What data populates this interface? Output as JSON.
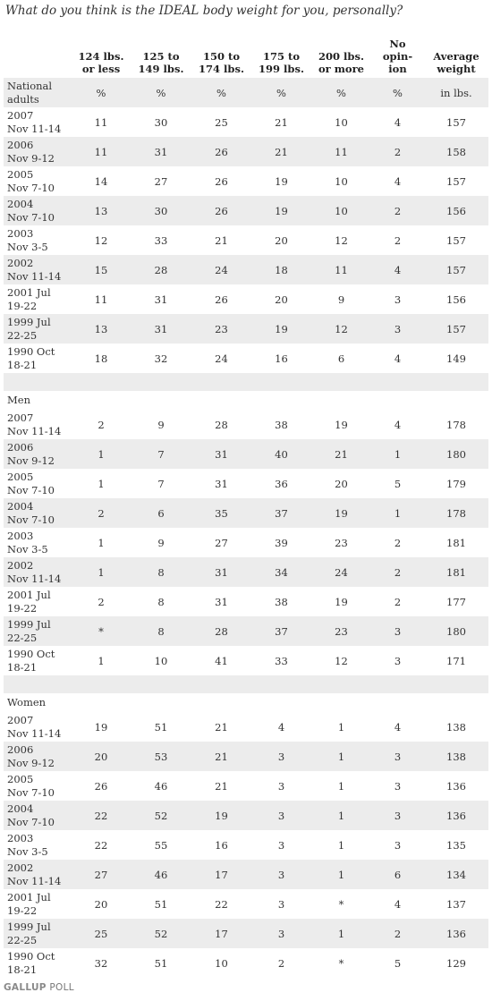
{
  "title": "What do you think is the IDEAL body weight for you, personally?",
  "columns": [
    [
      "124 lbs.",
      "or less"
    ],
    [
      "125 to",
      "149 lbs."
    ],
    [
      "150 to",
      "174 lbs."
    ],
    [
      "175 to",
      "199 lbs."
    ],
    [
      "200 lbs.",
      "or more"
    ],
    [
      "No",
      "opin-",
      "ion"
    ],
    [
      "Average",
      "weight"
    ]
  ],
  "units_label": [
    "National",
    "adults"
  ],
  "units": [
    "%",
    "%",
    "%",
    "%",
    "%",
    "%",
    "in lbs."
  ],
  "groups": [
    {
      "label": "",
      "rows": [
        {
          "date": [
            "2007",
            "Nov 11-14"
          ],
          "values": [
            "11",
            "30",
            "25",
            "21",
            "10",
            "4",
            "157"
          ]
        },
        {
          "date": [
            "2006",
            "Nov 9-12"
          ],
          "values": [
            "11",
            "31",
            "26",
            "21",
            "11",
            "2",
            "158"
          ]
        },
        {
          "date": [
            "2005",
            "Nov 7-10"
          ],
          "values": [
            "14",
            "27",
            "26",
            "19",
            "10",
            "4",
            "157"
          ]
        },
        {
          "date": [
            "2004",
            "Nov 7-10"
          ],
          "values": [
            "13",
            "30",
            "26",
            "19",
            "10",
            "2",
            "156"
          ]
        },
        {
          "date": [
            "2003",
            "Nov 3-5"
          ],
          "values": [
            "12",
            "33",
            "21",
            "20",
            "12",
            "2",
            "157"
          ]
        },
        {
          "date": [
            "2002",
            "Nov 11-14"
          ],
          "values": [
            "15",
            "28",
            "24",
            "18",
            "11",
            "4",
            "157"
          ]
        },
        {
          "date": [
            "2001 Jul",
            "19-22"
          ],
          "values": [
            "11",
            "31",
            "26",
            "20",
            "9",
            "3",
            "156"
          ]
        },
        {
          "date": [
            "1999 Jul",
            "22-25"
          ],
          "values": [
            "13",
            "31",
            "23",
            "19",
            "12",
            "3",
            "157"
          ]
        },
        {
          "date": [
            "1990 Oct",
            "18-21"
          ],
          "values": [
            "18",
            "32",
            "24",
            "16",
            "6",
            "4",
            "149"
          ]
        }
      ]
    },
    {
      "label": "Men",
      "rows": [
        {
          "date": [
            "2007",
            "Nov 11-14"
          ],
          "values": [
            "2",
            "9",
            "28",
            "38",
            "19",
            "4",
            "178"
          ]
        },
        {
          "date": [
            "2006",
            "Nov 9-12"
          ],
          "values": [
            "1",
            "7",
            "31",
            "40",
            "21",
            "1",
            "180"
          ]
        },
        {
          "date": [
            "2005",
            "Nov 7-10"
          ],
          "values": [
            "1",
            "7",
            "31",
            "36",
            "20",
            "5",
            "179"
          ]
        },
        {
          "date": [
            "2004",
            "Nov 7-10"
          ],
          "values": [
            "2",
            "6",
            "35",
            "37",
            "19",
            "1",
            "178"
          ]
        },
        {
          "date": [
            "2003",
            "Nov 3-5"
          ],
          "values": [
            "1",
            "9",
            "27",
            "39",
            "23",
            "2",
            "181"
          ]
        },
        {
          "date": [
            "2002",
            "Nov 11-14"
          ],
          "values": [
            "1",
            "8",
            "31",
            "34",
            "24",
            "2",
            "181"
          ]
        },
        {
          "date": [
            "2001 Jul",
            "19-22"
          ],
          "values": [
            "2",
            "8",
            "31",
            "38",
            "19",
            "2",
            "177"
          ]
        },
        {
          "date": [
            "1999 Jul",
            "22-25"
          ],
          "values": [
            "*",
            "8",
            "28",
            "37",
            "23",
            "3",
            "180"
          ]
        },
        {
          "date": [
            "1990 Oct",
            "18-21"
          ],
          "values": [
            "1",
            "10",
            "41",
            "33",
            "12",
            "3",
            "171"
          ]
        }
      ]
    },
    {
      "label": "Women",
      "rows": [
        {
          "date": [
            "2007",
            "Nov 11-14"
          ],
          "values": [
            "19",
            "51",
            "21",
            "4",
            "1",
            "4",
            "138"
          ]
        },
        {
          "date": [
            "2006",
            "Nov 9-12"
          ],
          "values": [
            "20",
            "53",
            "21",
            "3",
            "1",
            "3",
            "138"
          ]
        },
        {
          "date": [
            "2005",
            "Nov 7-10"
          ],
          "values": [
            "26",
            "46",
            "21",
            "3",
            "1",
            "3",
            "136"
          ]
        },
        {
          "date": [
            "2004",
            "Nov 7-10"
          ],
          "values": [
            "22",
            "52",
            "19",
            "3",
            "1",
            "3",
            "136"
          ]
        },
        {
          "date": [
            "2003",
            "Nov 3-5"
          ],
          "values": [
            "22",
            "55",
            "16",
            "3",
            "1",
            "3",
            "135"
          ]
        },
        {
          "date": [
            "2002",
            "Nov 11-14"
          ],
          "values": [
            "27",
            "46",
            "17",
            "3",
            "1",
            "6",
            "134"
          ]
        },
        {
          "date": [
            "2001 Jul",
            "19-22"
          ],
          "values": [
            "20",
            "51",
            "22",
            "3",
            "*",
            "4",
            "137"
          ]
        },
        {
          "date": [
            "1999 Jul",
            "22-25"
          ],
          "values": [
            "25",
            "52",
            "17",
            "3",
            "1",
            "2",
            "136"
          ]
        },
        {
          "date": [
            "1990 Oct",
            "18-21"
          ],
          "values": [
            "32",
            "51",
            "10",
            "2",
            "*",
            "5",
            "129"
          ]
        }
      ]
    }
  ],
  "footer": {
    "brand": "GALLUP",
    "suffix": " POLL"
  },
  "colors": {
    "stripe": "#ececec",
    "text": "#333333",
    "footer": "#777777"
  }
}
